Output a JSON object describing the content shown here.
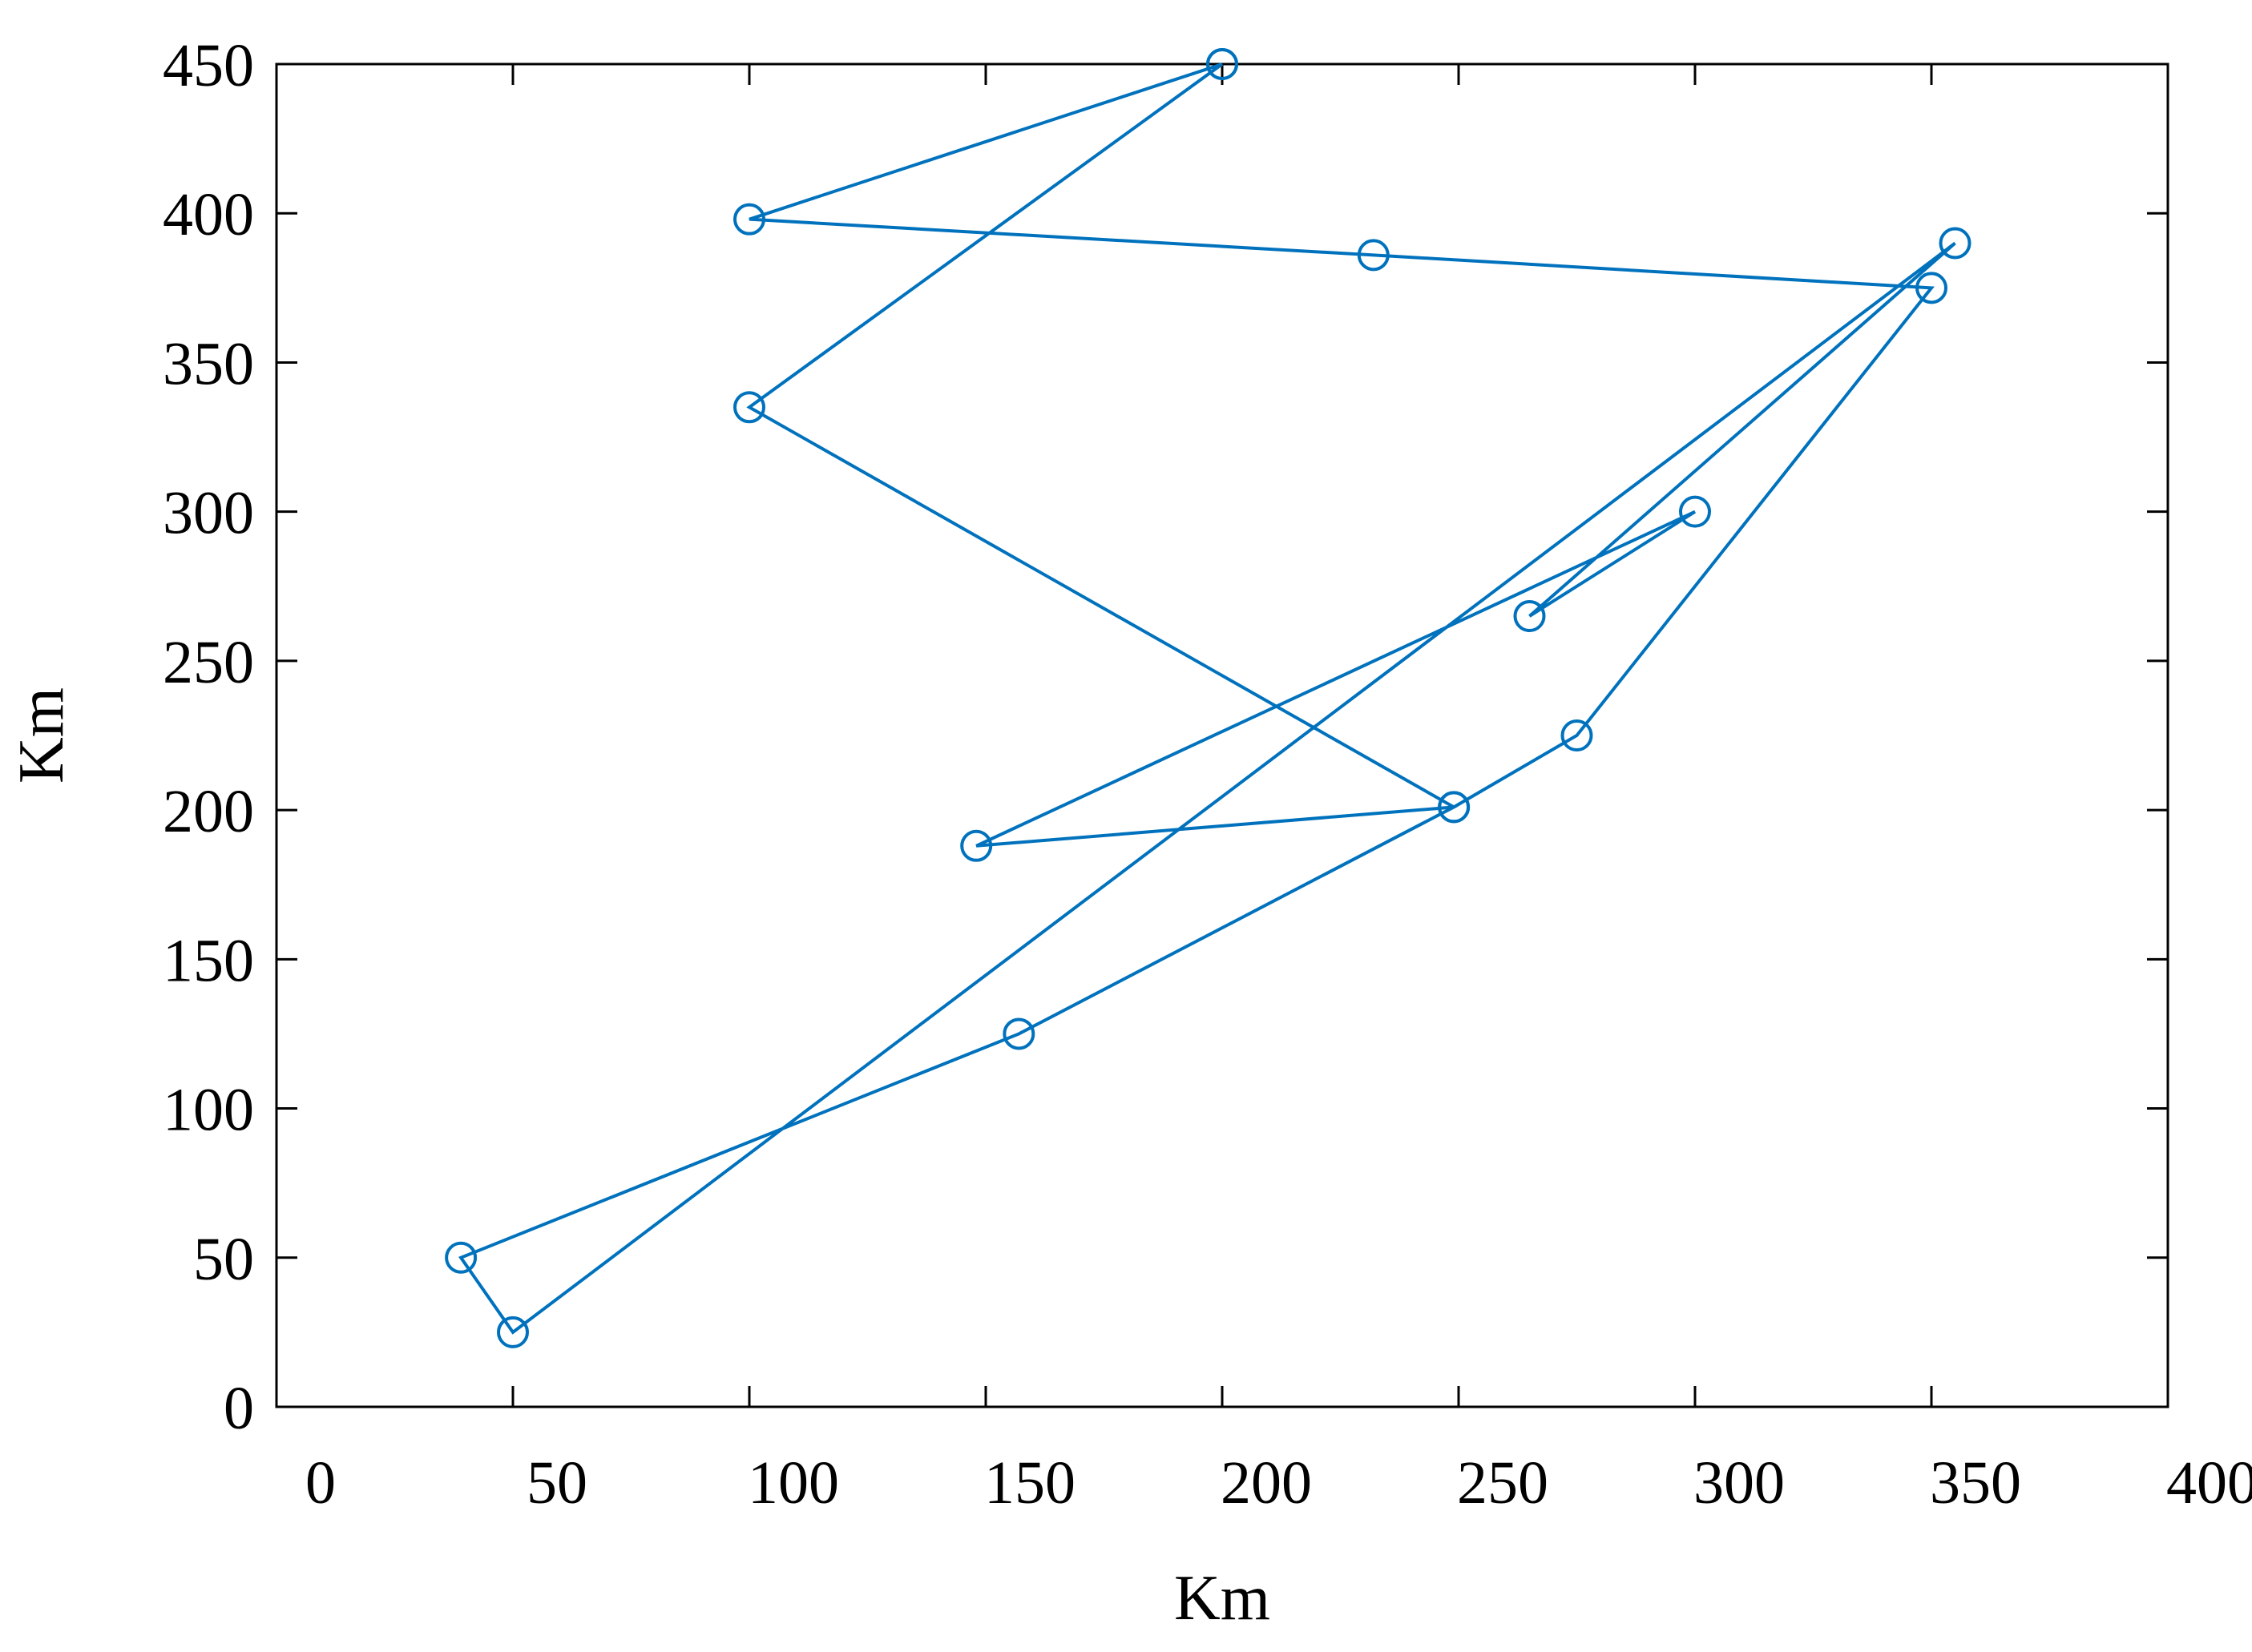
{
  "chart_data": {
    "type": "line",
    "title": "",
    "xlabel": "Km",
    "ylabel": "Km",
    "xlim": [
      0,
      400
    ],
    "ylim": [
      0,
      450
    ],
    "xticks": [
      0,
      50,
      100,
      150,
      200,
      250,
      300,
      350,
      400
    ],
    "yticks": [
      0,
      50,
      100,
      150,
      200,
      250,
      300,
      350,
      400,
      450
    ],
    "grid": false,
    "legend": "none",
    "marker": "open-circle",
    "series": [
      {
        "color": "#0072BD",
        "x": [
          200,
          100,
          232,
          350,
          275,
          249,
          148,
          300,
          265,
          355,
          50,
          39,
          157,
          249,
          100,
          200
        ],
        "y": [
          450,
          398,
          386,
          375,
          225,
          201,
          188,
          300,
          265,
          390,
          25,
          50,
          125,
          201,
          335,
          450
        ]
      }
    ]
  }
}
